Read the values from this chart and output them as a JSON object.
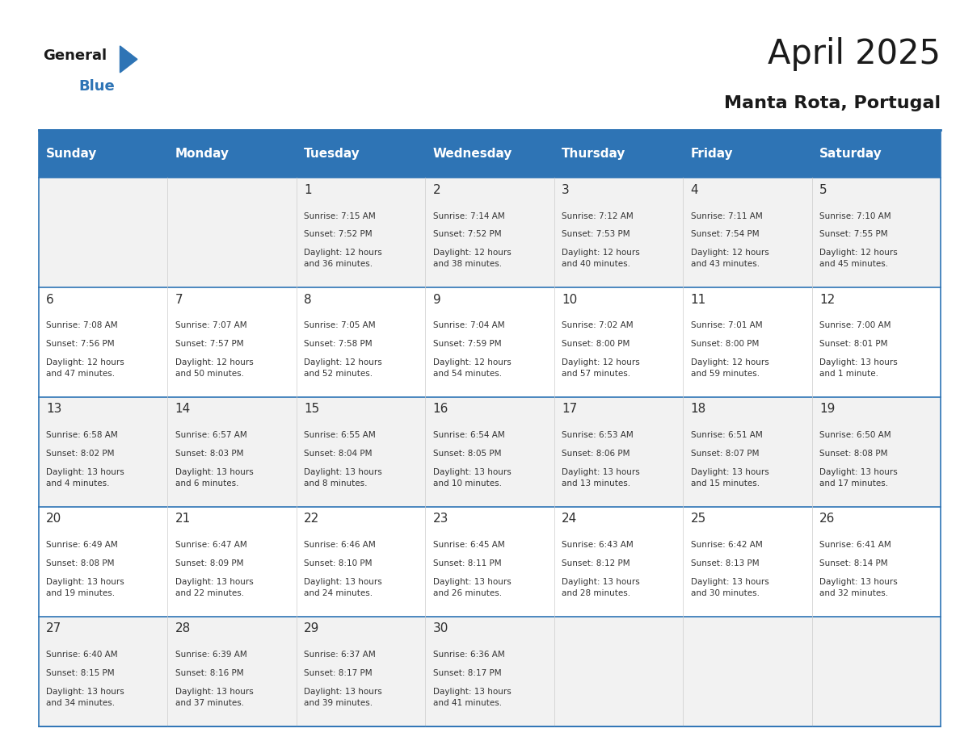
{
  "title": "April 2025",
  "subtitle": "Manta Rota, Portugal",
  "days_of_week": [
    "Sunday",
    "Monday",
    "Tuesday",
    "Wednesday",
    "Thursday",
    "Friday",
    "Saturday"
  ],
  "header_bg": "#2E74B5",
  "header_text_color": "#FFFFFF",
  "row_bg_even": "#F2F2F2",
  "row_bg_odd": "#FFFFFF",
  "separator_color": "#2E74B5",
  "text_color": "#333333",
  "day_num_color": "#2E2E2E",
  "calendar_data": [
    [
      {
        "day": null,
        "sunrise": null,
        "sunset": null,
        "daylight": null
      },
      {
        "day": null,
        "sunrise": null,
        "sunset": null,
        "daylight": null
      },
      {
        "day": 1,
        "sunrise": "7:15 AM",
        "sunset": "7:52 PM",
        "daylight": "12 hours\nand 36 minutes."
      },
      {
        "day": 2,
        "sunrise": "7:14 AM",
        "sunset": "7:52 PM",
        "daylight": "12 hours\nand 38 minutes."
      },
      {
        "day": 3,
        "sunrise": "7:12 AM",
        "sunset": "7:53 PM",
        "daylight": "12 hours\nand 40 minutes."
      },
      {
        "day": 4,
        "sunrise": "7:11 AM",
        "sunset": "7:54 PM",
        "daylight": "12 hours\nand 43 minutes."
      },
      {
        "day": 5,
        "sunrise": "7:10 AM",
        "sunset": "7:55 PM",
        "daylight": "12 hours\nand 45 minutes."
      }
    ],
    [
      {
        "day": 6,
        "sunrise": "7:08 AM",
        "sunset": "7:56 PM",
        "daylight": "12 hours\nand 47 minutes."
      },
      {
        "day": 7,
        "sunrise": "7:07 AM",
        "sunset": "7:57 PM",
        "daylight": "12 hours\nand 50 minutes."
      },
      {
        "day": 8,
        "sunrise": "7:05 AM",
        "sunset": "7:58 PM",
        "daylight": "12 hours\nand 52 minutes."
      },
      {
        "day": 9,
        "sunrise": "7:04 AM",
        "sunset": "7:59 PM",
        "daylight": "12 hours\nand 54 minutes."
      },
      {
        "day": 10,
        "sunrise": "7:02 AM",
        "sunset": "8:00 PM",
        "daylight": "12 hours\nand 57 minutes."
      },
      {
        "day": 11,
        "sunrise": "7:01 AM",
        "sunset": "8:00 PM",
        "daylight": "12 hours\nand 59 minutes."
      },
      {
        "day": 12,
        "sunrise": "7:00 AM",
        "sunset": "8:01 PM",
        "daylight": "13 hours\nand 1 minute."
      }
    ],
    [
      {
        "day": 13,
        "sunrise": "6:58 AM",
        "sunset": "8:02 PM",
        "daylight": "13 hours\nand 4 minutes."
      },
      {
        "day": 14,
        "sunrise": "6:57 AM",
        "sunset": "8:03 PM",
        "daylight": "13 hours\nand 6 minutes."
      },
      {
        "day": 15,
        "sunrise": "6:55 AM",
        "sunset": "8:04 PM",
        "daylight": "13 hours\nand 8 minutes."
      },
      {
        "day": 16,
        "sunrise": "6:54 AM",
        "sunset": "8:05 PM",
        "daylight": "13 hours\nand 10 minutes."
      },
      {
        "day": 17,
        "sunrise": "6:53 AM",
        "sunset": "8:06 PM",
        "daylight": "13 hours\nand 13 minutes."
      },
      {
        "day": 18,
        "sunrise": "6:51 AM",
        "sunset": "8:07 PM",
        "daylight": "13 hours\nand 15 minutes."
      },
      {
        "day": 19,
        "sunrise": "6:50 AM",
        "sunset": "8:08 PM",
        "daylight": "13 hours\nand 17 minutes."
      }
    ],
    [
      {
        "day": 20,
        "sunrise": "6:49 AM",
        "sunset": "8:08 PM",
        "daylight": "13 hours\nand 19 minutes."
      },
      {
        "day": 21,
        "sunrise": "6:47 AM",
        "sunset": "8:09 PM",
        "daylight": "13 hours\nand 22 minutes."
      },
      {
        "day": 22,
        "sunrise": "6:46 AM",
        "sunset": "8:10 PM",
        "daylight": "13 hours\nand 24 minutes."
      },
      {
        "day": 23,
        "sunrise": "6:45 AM",
        "sunset": "8:11 PM",
        "daylight": "13 hours\nand 26 minutes."
      },
      {
        "day": 24,
        "sunrise": "6:43 AM",
        "sunset": "8:12 PM",
        "daylight": "13 hours\nand 28 minutes."
      },
      {
        "day": 25,
        "sunrise": "6:42 AM",
        "sunset": "8:13 PM",
        "daylight": "13 hours\nand 30 minutes."
      },
      {
        "day": 26,
        "sunrise": "6:41 AM",
        "sunset": "8:14 PM",
        "daylight": "13 hours\nand 32 minutes."
      }
    ],
    [
      {
        "day": 27,
        "sunrise": "6:40 AM",
        "sunset": "8:15 PM",
        "daylight": "13 hours\nand 34 minutes."
      },
      {
        "day": 28,
        "sunrise": "6:39 AM",
        "sunset": "8:16 PM",
        "daylight": "13 hours\nand 37 minutes."
      },
      {
        "day": 29,
        "sunrise": "6:37 AM",
        "sunset": "8:17 PM",
        "daylight": "13 hours\nand 39 minutes."
      },
      {
        "day": 30,
        "sunrise": "6:36 AM",
        "sunset": "8:17 PM",
        "daylight": "13 hours\nand 41 minutes."
      },
      {
        "day": null,
        "sunrise": null,
        "sunset": null,
        "daylight": null
      },
      {
        "day": null,
        "sunrise": null,
        "sunset": null,
        "daylight": null
      },
      {
        "day": null,
        "sunrise": null,
        "sunset": null,
        "daylight": null
      }
    ]
  ]
}
